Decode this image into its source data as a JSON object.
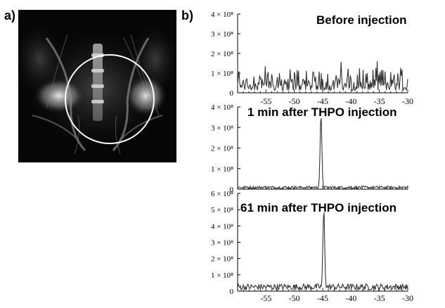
{
  "figure": {
    "panel_a_label": "a)",
    "panel_b_label": "b)"
  },
  "mri_image": {
    "overlay": "circle-roi",
    "overlay_color": "#ffffff"
  },
  "chart_data": [
    {
      "type": "line",
      "title": "Before injection",
      "xlabel": "",
      "ylabel": "",
      "xlim": [
        -60,
        -30
      ],
      "ylim": [
        0,
        400000000
      ],
      "x_ticks": [
        "-55",
        "-50",
        "-45",
        "-40",
        "-35",
        "-30"
      ],
      "y_ticks": [
        "0",
        "1 × 10⁸",
        "2 × 10⁸",
        "3 × 10⁸",
        "4 × 10⁸"
      ],
      "y_tick_values": [
        0,
        100000000,
        200000000,
        300000000,
        400000000
      ],
      "peak": null,
      "noise_level": 120000000,
      "grid": false
    },
    {
      "type": "line",
      "title": "1 min after THPO injection",
      "xlabel": "",
      "ylabel": "",
      "xlim": [
        -60,
        -30
      ],
      "ylim": [
        0,
        400000000
      ],
      "x_ticks": [],
      "y_ticks": [
        "0",
        "1 × 10⁸",
        "2 × 10⁸",
        "3 × 10⁸",
        "4 × 10⁸"
      ],
      "y_tick_values": [
        0,
        100000000,
        200000000,
        300000000,
        400000000
      ],
      "peak": {
        "x": -45.3,
        "y": 350000000
      },
      "noise_level": 15000000,
      "grid": false
    },
    {
      "type": "line",
      "title": "61 min after THPO injection",
      "xlabel": "",
      "ylabel": "",
      "xlim": [
        -60,
        -30
      ],
      "ylim": [
        0,
        600000000
      ],
      "x_ticks": [
        "-55",
        "-50",
        "-45",
        "-40",
        "-35",
        "-30"
      ],
      "y_ticks": [
        "0",
        "1 × 10⁸",
        "2 × 10⁸",
        "3 × 10⁸",
        "4 × 10⁸",
        "5 × 10⁸",
        "6 × 10⁸"
      ],
      "y_tick_values": [
        0,
        100000000,
        200000000,
        300000000,
        400000000,
        500000000,
        600000000
      ],
      "peak": {
        "x": -44.8,
        "y": 470000000
      },
      "noise_level": 45000000,
      "grid": false
    }
  ]
}
